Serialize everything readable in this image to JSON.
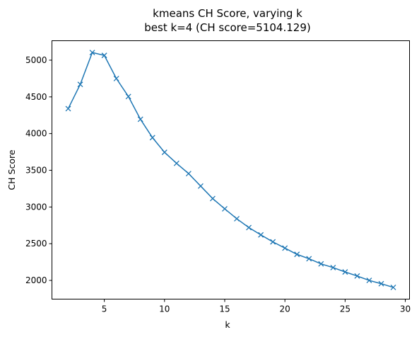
{
  "chart_data": {
    "type": "line",
    "title": "kmeans CH Score, varying k",
    "subtitle": "best k=4 (CH score=5104.129)",
    "xlabel": "k",
    "ylabel": "CH Score",
    "xlim": [
      0.65,
      30.35
    ],
    "ylim": [
      1745,
      5265
    ],
    "xticks": [
      5,
      10,
      15,
      20,
      25,
      30
    ],
    "yticks": [
      2000,
      2500,
      3000,
      3500,
      4000,
      4500,
      5000
    ],
    "grid": false,
    "marker": "x",
    "series": [
      {
        "color": "#1f77b4",
        "x": [
          2,
          3,
          4,
          5,
          6,
          7,
          8,
          9,
          10,
          11,
          12,
          13,
          14,
          15,
          16,
          17,
          18,
          19,
          20,
          21,
          22,
          23,
          24,
          25,
          26,
          27,
          28,
          29
        ],
        "y": [
          4340,
          4670,
          5104.129,
          5065,
          4750,
          4505,
          4195,
          3945,
          3745,
          3595,
          3455,
          3285,
          3115,
          2975,
          2840,
          2720,
          2620,
          2525,
          2440,
          2355,
          2295,
          2225,
          2175,
          2115,
          2060,
          2000,
          1955,
          1905
        ]
      }
    ]
  }
}
